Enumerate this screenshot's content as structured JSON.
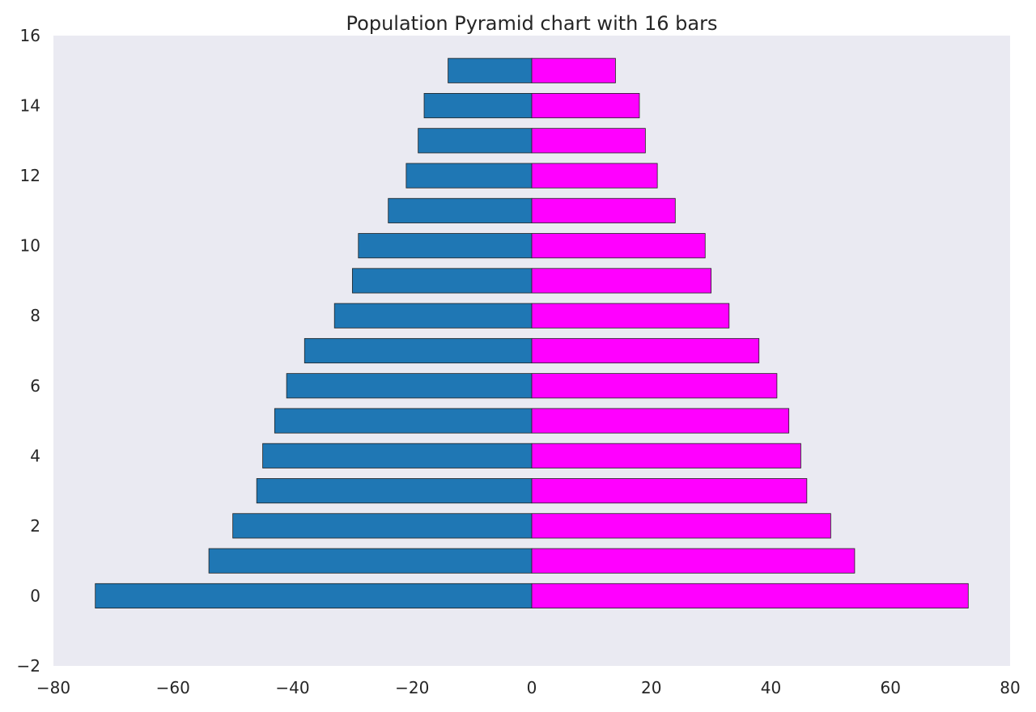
{
  "chart_data": {
    "type": "bar",
    "orientation": "horizontal",
    "title": "Population Pyramid chart with 16 bars",
    "xlabel": "",
    "ylabel": "",
    "xlim": [
      -80,
      80
    ],
    "ylim": [
      -2,
      16
    ],
    "grid": false,
    "legend": "none",
    "background_color": "#eaeaf2",
    "colors": {
      "left": "#1f77b4",
      "right": "#ff00ff",
      "edge": "#222222"
    },
    "x_ticks": [
      "−80",
      "−60",
      "−40",
      "−20",
      "0",
      "20",
      "40",
      "60",
      "80"
    ],
    "x_tick_values": [
      -80,
      -60,
      -40,
      -20,
      0,
      20,
      40,
      60,
      80
    ],
    "y_ticks": [
      "−2",
      "0",
      "2",
      "4",
      "6",
      "8",
      "10",
      "12",
      "14",
      "16"
    ],
    "y_tick_values": [
      -2,
      0,
      2,
      4,
      6,
      8,
      10,
      12,
      14,
      16
    ],
    "categories": [
      0,
      1,
      2,
      3,
      4,
      5,
      6,
      7,
      8,
      9,
      10,
      11,
      12,
      13,
      14,
      15
    ],
    "series": [
      {
        "values": [
          -73,
          -54,
          -50,
          -46,
          -45,
          -43,
          -41,
          -38,
          -33,
          -30,
          -29,
          -24,
          -21,
          -19,
          -18,
          -14
        ]
      },
      {
        "values": [
          73,
          54,
          50,
          46,
          45,
          43,
          41,
          38,
          33,
          30,
          29,
          24,
          21,
          19,
          18,
          14
        ]
      }
    ]
  }
}
